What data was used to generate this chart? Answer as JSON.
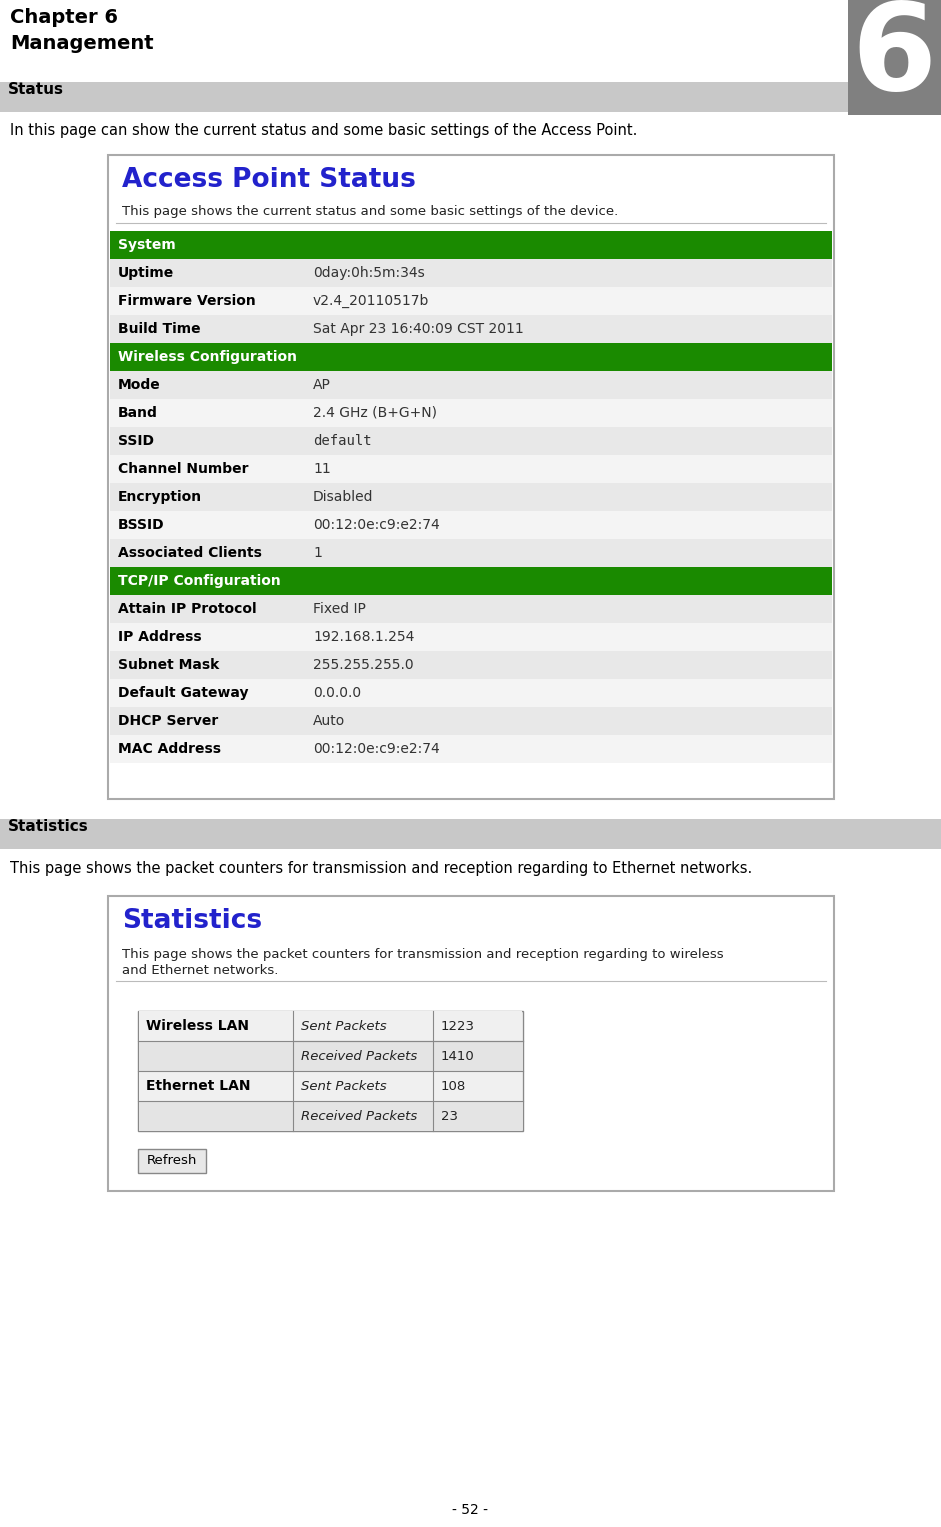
{
  "page_bg": "#ffffff",
  "chapter_title": "Chapter 6",
  "chapter_subtitle": "Management",
  "section1_title": "Status",
  "section1_desc": "In this page can show the current status and some basic settings of the Access Point.",
  "section2_title": "Statistics",
  "section2_desc": "This page shows the packet counters for transmission and reception regarding to Ethernet networks.",
  "footer": "- 52 -",
  "section_bar_bg": "#c8c8c8",
  "green_header_bg": "#1a8a00",
  "green_header_text": "#ffffff",
  "row_odd": "#e8e8e8",
  "row_even": "#f4f4f4",
  "box_border": "#888888",
  "blue_title_color": "#2222cc",
  "big6_bg": "#808080",
  "big6_text": "#ffffff",
  "status_box_title": "Access Point Status",
  "status_box_desc": "This page shows the current status and some basic settings of the device.",
  "status_rows": [
    {
      "section": "System",
      "is_header": true
    },
    {
      "label": "Uptime",
      "value": "0day:0h:5m:34s",
      "is_header": false,
      "mono": false
    },
    {
      "label": "Firmware Version",
      "value": "v2.4_20110517b",
      "is_header": false,
      "mono": false
    },
    {
      "label": "Build Time",
      "value": "Sat Apr 23 16:40:09 CST 2011",
      "is_header": false,
      "mono": false
    },
    {
      "section": "Wireless Configuration",
      "is_header": true
    },
    {
      "label": "Mode",
      "value": "AP",
      "is_header": false,
      "mono": false
    },
    {
      "label": "Band",
      "value": "2.4 GHz (B+G+N)",
      "is_header": false,
      "mono": false
    },
    {
      "label": "SSID",
      "value": "default",
      "is_header": false,
      "mono": true
    },
    {
      "label": "Channel Number",
      "value": "11",
      "is_header": false,
      "mono": false
    },
    {
      "label": "Encryption",
      "value": "Disabled",
      "is_header": false,
      "mono": false
    },
    {
      "label": "BSSID",
      "value": "00:12:0e:c9:e2:74",
      "is_header": false,
      "mono": false
    },
    {
      "label": "Associated Clients",
      "value": "1",
      "is_header": false,
      "mono": false
    },
    {
      "section": "TCP/IP Configuration",
      "is_header": true
    },
    {
      "label": "Attain IP Protocol",
      "value": "Fixed IP",
      "is_header": false,
      "mono": false
    },
    {
      "label": "IP Address",
      "value": "192.168.1.254",
      "is_header": false,
      "mono": false
    },
    {
      "label": "Subnet Mask",
      "value": "255.255.255.0",
      "is_header": false,
      "mono": false
    },
    {
      "label": "Default Gateway",
      "value": "0.0.0.0",
      "is_header": false,
      "mono": false
    },
    {
      "label": "DHCP Server",
      "value": "Auto",
      "is_header": false,
      "mono": false
    },
    {
      "label": "MAC Address",
      "value": "00:12:0e:c9:e2:74",
      "is_header": false,
      "mono": false
    }
  ],
  "stats_box_title": "Statistics",
  "stats_box_desc1": "This page shows the packet counters for transmission and reception regarding to wireless",
  "stats_box_desc2": "and Ethernet networks.",
  "stats_rows": [
    {
      "group": "Wireless LAN",
      "label": "Sent Packets",
      "value": "1223",
      "grp_rowspan": 2
    },
    {
      "group": "",
      "label": "Received Packets",
      "value": "1410",
      "grp_rowspan": 0
    },
    {
      "group": "Ethernet LAN",
      "label": "Sent Packets",
      "value": "108",
      "grp_rowspan": 2
    },
    {
      "group": "",
      "label": "Received Packets",
      "value": "23",
      "grp_rowspan": 0
    }
  ]
}
